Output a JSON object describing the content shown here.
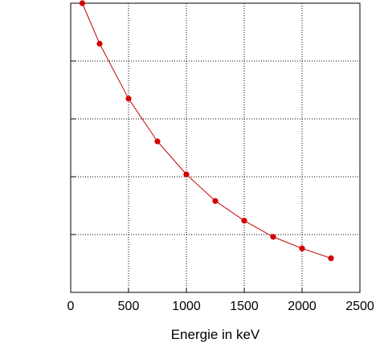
{
  "chart_data": {
    "type": "line",
    "xlabel": "Energie in keV",
    "ylabel": "",
    "xlim": [
      0,
      2500
    ],
    "ylim": [
      0,
      5
    ],
    "x_ticks": [
      "0",
      "500",
      "1000",
      "1500",
      "2000",
      "2500"
    ],
    "grid": true,
    "series": [
      {
        "color": "#d40000",
        "marker": "circle",
        "x": [
          100,
          250,
          500,
          750,
          1000,
          1250,
          1500,
          1750,
          2000,
          2250
        ],
        "y": [
          5.0,
          4.3,
          3.35,
          2.61,
          2.04,
          1.58,
          1.24,
          0.96,
          0.76,
          0.59
        ]
      }
    ]
  }
}
